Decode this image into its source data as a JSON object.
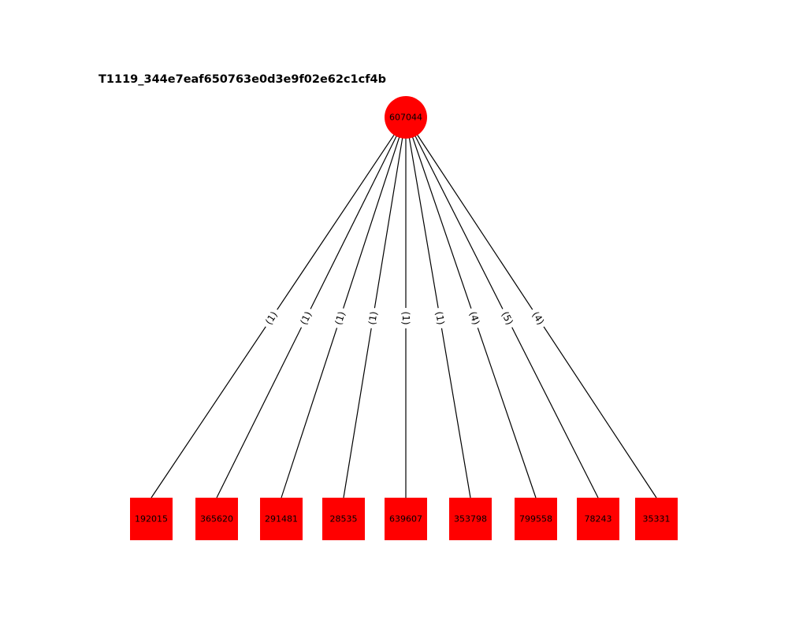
{
  "title": "T1119_344e7eaf650763e0d3e9f02e62c1cf4b",
  "colors": {
    "node_fill": "#ff0000",
    "edge": "#000000",
    "text": "#000000",
    "background": "#ffffff"
  },
  "root": {
    "id": "607044",
    "shape": "circle"
  },
  "children": [
    {
      "id": "192015",
      "shape": "square",
      "edge_label": "(1)"
    },
    {
      "id": "365620",
      "shape": "square",
      "edge_label": "(1)"
    },
    {
      "id": "291481",
      "shape": "square",
      "edge_label": "(1)"
    },
    {
      "id": "28535",
      "shape": "square",
      "edge_label": "(1)"
    },
    {
      "id": "639607",
      "shape": "square",
      "edge_label": "(1)"
    },
    {
      "id": "353798",
      "shape": "square",
      "edge_label": "(1)"
    },
    {
      "id": "799558",
      "shape": "square",
      "edge_label": "(4)"
    },
    {
      "id": "78243",
      "shape": "square",
      "edge_label": "(5)"
    },
    {
      "id": "35331",
      "shape": "square",
      "edge_label": "(4)"
    }
  ]
}
